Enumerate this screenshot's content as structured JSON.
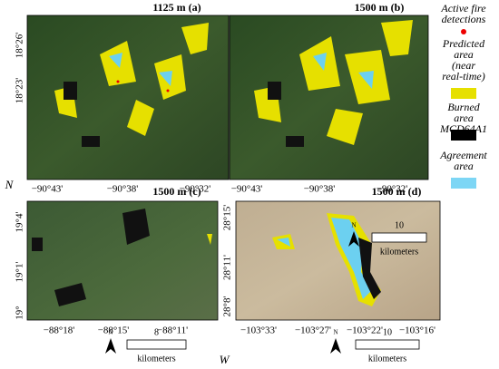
{
  "panels": [
    {
      "title": "1125 m (a)",
      "xticks": [
        "−90°43'",
        "−90°38'",
        "−90°32'"
      ],
      "yticks": [
        "18°26'",
        "18°23'"
      ]
    },
    {
      "title": "1500 m (b)",
      "xticks": [
        "−90°43'",
        "−90°38'",
        "−90°32'"
      ],
      "yticks": []
    },
    {
      "title": "1500 m (c)",
      "xticks": [
        "−88°18'",
        "−88°15'",
        "−88°11'"
      ],
      "yticks": [
        "19°4'",
        "19°1'",
        "19°"
      ]
    },
    {
      "title": "1500 m (d)",
      "xticks": [
        "−103°33'",
        "−103°27'",
        "−103°22'",
        "−103°16'"
      ],
      "yticks": [
        "28°15'",
        "28°11'",
        "28°8'"
      ]
    }
  ],
  "scale_bars": [
    {
      "north": "N",
      "distance": "10",
      "unit": "kilometers"
    },
    {
      "north": "N",
      "distance": "8",
      "unit": "kilometers"
    },
    {
      "north": "N",
      "distance": "10",
      "unit": "kilometers"
    }
  ],
  "legend": [
    {
      "lines": [
        "Active fire",
        "detections"
      ]
    },
    {
      "lines": [
        "Predicted",
        "area",
        "(near",
        "real-time)"
      ]
    },
    {
      "lines": [
        "Burned",
        "area",
        "MCD64A1"
      ]
    },
    {
      "lines": [
        "Agreement",
        "area"
      ]
    }
  ],
  "axis_labels": {
    "latitude": "N",
    "longitude": "W"
  }
}
